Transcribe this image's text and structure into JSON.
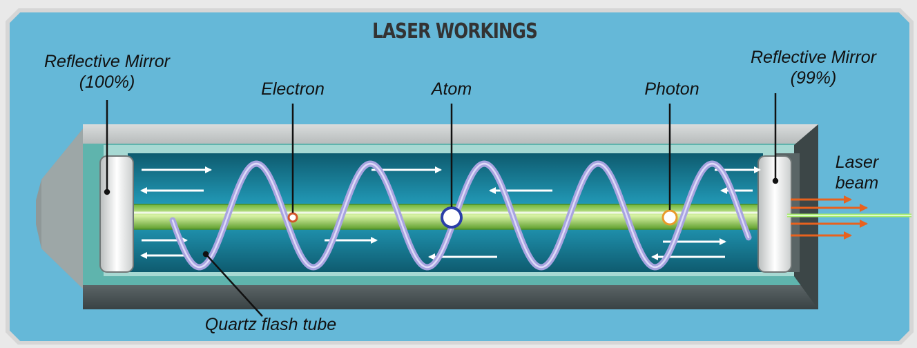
{
  "title": "LASER WORKINGS",
  "labels": {
    "left_mirror": "Reflective Mirror",
    "left_mirror_pct": "(100%)",
    "right_mirror": "Reflective Mirror",
    "right_mirror_pct": "(99%)",
    "electron": "Electron",
    "atom": "Atom",
    "photon": "Photon",
    "laser_line1": "Laser",
    "laser_line2": "beam",
    "quartz": "Quartz flash tube"
  },
  "colors": {
    "background": "#65b8d8",
    "frame": "#e9e9e9",
    "chamber": "#1e8fb0",
    "rod": "#8ed14a",
    "helix": "#a8a4e0",
    "beam_arrows": "#e8621e",
    "electron": "#d2552a",
    "atom": "#2a3ea8",
    "photon": "#e89a2a"
  }
}
